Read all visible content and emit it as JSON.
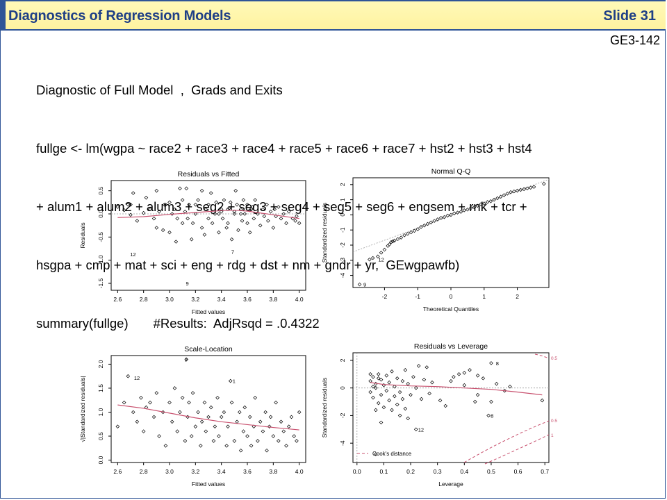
{
  "header": {
    "title": "Diagnostics of Regression Models",
    "slide_number": "Slide 31",
    "code": "GE3-142"
  },
  "body_lines": [
    "Diagnostic of Full Model  ,  Grads and Exits",
    "fullge <- lm(wgpa ~ race2 + race3 + race4 + race5 + race6 + race7 + hst2 + hst3 + hst4",
    "+ alum1 + alum2 + alum3 + seg2 + seg3 + seg4 + seg5 + seg6 + engsem + rnk + tcr +",
    "hsgpa + cmp + mat + sci + eng + rdg + dst + nm + gndr + yr,  GEwgpawfb)",
    "summary(fullge)       #Results:  AdjRsqd = .0.4322"
  ],
  "colors": {
    "title_text": "#1f3f86",
    "frame": "#2f5597",
    "title_bg": "#fff5a8",
    "smooth_line": "#c8506e"
  },
  "chart_data": [
    {
      "type": "scatter",
      "title": "Residuals vs Fitted",
      "xlabel": "Fitted values",
      "ylabel": "Residuals",
      "xlim": [
        2.55,
        4.05
      ],
      "ylim": [
        -1.65,
        0.72
      ],
      "xticks": [
        "2.6",
        "2.8",
        "3.0",
        "3.2",
        "3.4",
        "3.6",
        "3.8",
        "4.0"
      ],
      "yticks": [
        "-1.5",
        "-1.0",
        "-0.5",
        "0.0",
        "0.5"
      ],
      "reference_line": 0,
      "smooth": [
        [
          2.6,
          -0.08
        ],
        [
          2.8,
          -0.06
        ],
        [
          3.0,
          -0.01
        ],
        [
          3.2,
          0.03
        ],
        [
          3.4,
          0.07
        ],
        [
          3.5,
          0.08
        ],
        [
          3.6,
          0.06
        ],
        [
          3.8,
          -0.02
        ],
        [
          4.0,
          -0.1
        ]
      ],
      "labels": [
        {
          "text": "12",
          "x": 2.68,
          "y": -0.87
        },
        {
          "text": "9",
          "x": 3.11,
          "y": -1.5
        },
        {
          "text": "7",
          "x": 3.46,
          "y": -0.82
        }
      ],
      "points": [
        [
          2.6,
          0.15
        ],
        [
          2.65,
          0.08
        ],
        [
          2.68,
          0.2
        ],
        [
          2.7,
          -0.02
        ],
        [
          2.7,
          0.2
        ],
        [
          2.72,
          0.45
        ],
        [
          2.75,
          -0.15
        ],
        [
          2.8,
          0.02
        ],
        [
          2.82,
          0.35
        ],
        [
          2.85,
          0.1
        ],
        [
          2.88,
          -0.1
        ],
        [
          2.9,
          -0.3
        ],
        [
          2.9,
          0.5
        ],
        [
          2.92,
          0.05
        ],
        [
          2.95,
          -0.35
        ],
        [
          2.96,
          0.2
        ],
        [
          2.97,
          0.2
        ],
        [
          3.0,
          -0.4
        ],
        [
          3.0,
          0.25
        ],
        [
          3.02,
          0.0
        ],
        [
          3.04,
          0.1
        ],
        [
          3.05,
          -0.6
        ],
        [
          3.06,
          -0.1
        ],
        [
          3.08,
          0.55
        ],
        [
          3.1,
          -0.2
        ],
        [
          3.1,
          0.3
        ],
        [
          3.12,
          0.05
        ],
        [
          3.13,
          0.55
        ],
        [
          3.14,
          -0.1
        ],
        [
          3.15,
          0.2
        ],
        [
          3.17,
          -0.55
        ],
        [
          3.18,
          -0.2
        ],
        [
          3.2,
          0.2
        ],
        [
          3.2,
          0.0
        ],
        [
          3.22,
          0.3
        ],
        [
          3.25,
          -0.3
        ],
        [
          3.25,
          0.5
        ],
        [
          3.27,
          -0.45
        ],
        [
          3.28,
          0.1
        ],
        [
          3.3,
          0.2
        ],
        [
          3.3,
          -0.1
        ],
        [
          3.32,
          0.45
        ],
        [
          3.33,
          -0.2
        ],
        [
          3.35,
          0.0
        ],
        [
          3.36,
          0.25
        ],
        [
          3.38,
          -0.4
        ],
        [
          3.4,
          0.1
        ],
        [
          3.41,
          -0.1
        ],
        [
          3.42,
          0.3
        ],
        [
          3.44,
          -0.3
        ],
        [
          3.45,
          0.1
        ],
        [
          3.45,
          -0.2
        ],
        [
          3.47,
          0.25
        ],
        [
          3.48,
          -0.55
        ],
        [
          3.5,
          0.0
        ],
        [
          3.51,
          0.5
        ],
        [
          3.52,
          0.2
        ],
        [
          3.53,
          -0.35
        ],
        [
          3.55,
          0.1
        ],
        [
          3.56,
          -0.15
        ],
        [
          3.57,
          0.3
        ],
        [
          3.58,
          0.0
        ],
        [
          3.6,
          -0.2
        ],
        [
          3.6,
          0.2
        ],
        [
          3.62,
          -0.4
        ],
        [
          3.63,
          0.1
        ],
        [
          3.64,
          0.15
        ],
        [
          3.65,
          -0.1
        ],
        [
          3.66,
          0.3
        ],
        [
          3.68,
          0.0
        ],
        [
          3.7,
          -0.25
        ],
        [
          3.72,
          0.1
        ],
        [
          3.73,
          -0.05
        ],
        [
          3.75,
          0.2
        ],
        [
          3.76,
          -0.15
        ],
        [
          3.78,
          0.05
        ],
        [
          3.8,
          -0.3
        ],
        [
          3.81,
          0.1
        ],
        [
          3.82,
          -0.05
        ],
        [
          3.84,
          0.15
        ],
        [
          3.86,
          -0.1
        ],
        [
          3.88,
          0.0
        ],
        [
          3.9,
          -0.2
        ],
        [
          3.92,
          0.05
        ],
        [
          3.95,
          -0.1
        ],
        [
          3.97,
          -0.15
        ],
        [
          4.0,
          -0.2
        ],
        [
          3.98,
          -0.05
        ],
        [
          3.5,
          0.05
        ],
        [
          3.55,
          0.0
        ],
        [
          3.62,
          0.08
        ],
        [
          3.4,
          0.05
        ],
        [
          3.38,
          0.0
        ],
        [
          3.46,
          0.12
        ]
      ]
    },
    {
      "type": "scatter",
      "title": "Normal Q-Q",
      "xlabel": "Theoretical Quantiles",
      "ylabel": "Standardized residuals",
      "xlim": [
        -2.95,
        2.95
      ],
      "ylim": [
        -4.8,
        2.45
      ],
      "xticks": [
        "-2",
        "-1",
        "0",
        "1",
        "2"
      ],
      "yticks": [
        "-4",
        "-3",
        "-2",
        "-1",
        "0",
        "1",
        "2"
      ],
      "reference_line": "qq",
      "labels": [
        {
          "text": "12",
          "x": -2.25,
          "y": -2.95
        },
        {
          "text": "9",
          "x": -2.7,
          "y": -4.6
        }
      ],
      "points": [
        [
          -2.75,
          -4.6
        ],
        [
          -2.45,
          -2.95
        ],
        [
          -2.35,
          -2.85
        ],
        [
          -2.2,
          -2.75
        ],
        [
          -2.1,
          -2.5
        ],
        [
          -2.0,
          -2.3
        ],
        [
          -1.9,
          -2.05
        ],
        [
          -1.85,
          -1.95
        ],
        [
          -1.8,
          -1.8
        ],
        [
          -1.75,
          -1.75
        ],
        [
          -1.7,
          -1.7
        ],
        [
          -1.6,
          -1.6
        ],
        [
          -1.5,
          -1.5
        ],
        [
          -1.4,
          -1.35
        ],
        [
          -1.3,
          -1.25
        ],
        [
          -1.2,
          -1.15
        ],
        [
          -1.1,
          -1.05
        ],
        [
          -1.0,
          -0.95
        ],
        [
          -0.9,
          -0.8
        ],
        [
          -0.8,
          -0.7
        ],
        [
          -0.7,
          -0.6
        ],
        [
          -0.6,
          -0.5
        ],
        [
          -0.5,
          -0.4
        ],
        [
          -0.4,
          -0.3
        ],
        [
          -0.3,
          -0.2
        ],
        [
          -0.2,
          -0.15
        ],
        [
          -0.1,
          -0.05
        ],
        [
          0.0,
          0.0
        ],
        [
          0.1,
          0.1
        ],
        [
          0.2,
          0.15
        ],
        [
          0.3,
          0.2
        ],
        [
          0.4,
          0.3
        ],
        [
          0.5,
          0.35
        ],
        [
          0.6,
          0.45
        ],
        [
          0.7,
          0.5
        ],
        [
          0.8,
          0.6
        ],
        [
          0.9,
          0.7
        ],
        [
          1.0,
          0.75
        ],
        [
          1.1,
          0.85
        ],
        [
          1.2,
          0.9
        ],
        [
          1.3,
          1.0
        ],
        [
          1.4,
          1.1
        ],
        [
          1.5,
          1.2
        ],
        [
          1.6,
          1.3
        ],
        [
          1.7,
          1.4
        ],
        [
          1.8,
          1.5
        ],
        [
          1.9,
          1.55
        ],
        [
          2.0,
          1.6
        ],
        [
          2.1,
          1.65
        ],
        [
          2.2,
          1.7
        ],
        [
          2.3,
          1.75
        ],
        [
          2.4,
          1.8
        ],
        [
          2.5,
          1.85
        ],
        [
          2.8,
          2.05
        ]
      ]
    },
    {
      "type": "scatter",
      "title": "Scale-Location",
      "xlabel": "Fitted values",
      "ylabel": "√|Standardized residuals|",
      "xlim": [
        2.55,
        4.05
      ],
      "ylim": [
        -0.05,
        2.18
      ],
      "xticks": [
        "2.6",
        "2.8",
        "3.0",
        "3.2",
        "3.4",
        "3.6",
        "3.8",
        "4.0"
      ],
      "yticks": [
        "0.0",
        "0.5",
        "1.0",
        "1.5",
        "2.0"
      ],
      "smooth": [
        [
          2.6,
          1.15
        ],
        [
          2.8,
          1.08
        ],
        [
          3.0,
          0.98
        ],
        [
          3.2,
          0.88
        ],
        [
          3.4,
          0.8
        ],
        [
          3.6,
          0.74
        ],
        [
          3.8,
          0.68
        ],
        [
          4.0,
          0.63
        ]
      ],
      "labels": [
        {
          "text": "12",
          "x": 2.71,
          "y": 1.72
        },
        {
          "text": "9",
          "x": 3.1,
          "y": 2.1
        },
        {
          "text": "1",
          "x": 3.47,
          "y": 1.65
        }
      ],
      "points": [
        [
          2.6,
          0.7
        ],
        [
          2.65,
          1.2
        ],
        [
          2.68,
          1.75
        ],
        [
          2.72,
          1.0
        ],
        [
          2.75,
          0.8
        ],
        [
          2.78,
          1.3
        ],
        [
          2.8,
          0.6
        ],
        [
          2.82,
          1.1
        ],
        [
          2.85,
          1.2
        ],
        [
          2.88,
          0.9
        ],
        [
          2.9,
          1.4
        ],
        [
          2.92,
          0.5
        ],
        [
          2.95,
          1.0
        ],
        [
          2.97,
          0.3
        ],
        [
          3.0,
          1.2
        ],
        [
          3.02,
          0.8
        ],
        [
          3.04,
          1.5
        ],
        [
          3.06,
          0.6
        ],
        [
          3.08,
          1.0
        ],
        [
          3.1,
          1.3
        ],
        [
          3.12,
          0.4
        ],
        [
          3.13,
          2.1
        ],
        [
          3.14,
          0.9
        ],
        [
          3.15,
          1.2
        ],
        [
          3.17,
          0.5
        ],
        [
          3.18,
          1.4
        ],
        [
          3.2,
          0.7
        ],
        [
          3.22,
          1.0
        ],
        [
          3.24,
          0.3
        ],
        [
          3.25,
          0.8
        ],
        [
          3.27,
          1.2
        ],
        [
          3.28,
          0.6
        ],
        [
          3.3,
          0.9
        ],
        [
          3.32,
          1.1
        ],
        [
          3.34,
          0.4
        ],
        [
          3.35,
          0.7
        ],
        [
          3.37,
          1.3
        ],
        [
          3.38,
          0.5
        ],
        [
          3.4,
          0.9
        ],
        [
          3.42,
          1.0
        ],
        [
          3.44,
          0.3
        ],
        [
          3.45,
          0.7
        ],
        [
          3.47,
          1.65
        ],
        [
          3.48,
          1.2
        ],
        [
          3.5,
          0.4
        ],
        [
          3.52,
          0.8
        ],
        [
          3.54,
          1.0
        ],
        [
          3.55,
          0.2
        ],
        [
          3.57,
          0.6
        ],
        [
          3.58,
          1.1
        ],
        [
          3.6,
          0.5
        ],
        [
          3.62,
          0.9
        ],
        [
          3.63,
          0.3
        ],
        [
          3.65,
          0.7
        ],
        [
          3.66,
          1.3
        ],
        [
          3.68,
          0.4
        ],
        [
          3.7,
          0.8
        ],
        [
          3.72,
          0.6
        ],
        [
          3.74,
          1.0
        ],
        [
          3.75,
          0.2
        ],
        [
          3.77,
          0.7
        ],
        [
          3.78,
          0.9
        ],
        [
          3.8,
          0.5
        ],
        [
          3.82,
          1.2
        ],
        [
          3.84,
          0.4
        ],
        [
          3.86,
          0.8
        ],
        [
          3.88,
          0.6
        ],
        [
          3.9,
          0.3
        ],
        [
          3.92,
          0.7
        ],
        [
          3.94,
          0.9
        ],
        [
          3.96,
          0.5
        ],
        [
          3.98,
          0.4
        ],
        [
          4.0,
          1.0
        ]
      ]
    },
    {
      "type": "scatter",
      "title": "Residuals vs Leverage",
      "xlabel": "Leverage",
      "ylabel": "Standardized residuals",
      "xlim": [
        -0.015,
        0.715
      ],
      "ylim": [
        -5.4,
        2.55
      ],
      "xticks": [
        "0.0",
        "0.1",
        "0.2",
        "0.3",
        "0.4",
        "0.5",
        "0.6",
        "0.7"
      ],
      "yticks": [
        "-4",
        "-2",
        "0",
        "2"
      ],
      "reference_line": 0,
      "legend": "Cook's distance",
      "cook_levels": [
        "0.5",
        "0.5",
        "1"
      ],
      "smooth": [
        [
          0.05,
          0.4
        ],
        [
          0.1,
          0.25
        ],
        [
          0.2,
          0.15
        ],
        [
          0.3,
          0.1
        ],
        [
          0.4,
          0.0
        ],
        [
          0.5,
          -0.1
        ],
        [
          0.6,
          -0.3
        ],
        [
          0.69,
          -0.5
        ]
      ],
      "labels": [
        {
          "text": "12",
          "x": 0.22,
          "y": -3.0
        },
        {
          "text": "8",
          "x": 0.51,
          "y": 1.8
        },
        {
          "text": "8",
          "x": 0.49,
          "y": -2.0
        }
      ],
      "points": [
        [
          0.05,
          0.5
        ],
        [
          0.06,
          0.8
        ],
        [
          0.07,
          0.3
        ],
        [
          0.08,
          1.0
        ],
        [
          0.09,
          0.6
        ],
        [
          0.1,
          0.2
        ],
        [
          0.11,
          0.9
        ],
        [
          0.12,
          0.4
        ],
        [
          0.13,
          1.2
        ],
        [
          0.14,
          0.1
        ],
        [
          0.15,
          0.7
        ],
        [
          0.16,
          -0.3
        ],
        [
          0.17,
          0.5
        ],
        [
          0.18,
          1.3
        ],
        [
          0.19,
          0.3
        ],
        [
          0.2,
          -0.5
        ],
        [
          0.21,
          0.8
        ],
        [
          0.22,
          0.0
        ],
        [
          0.23,
          1.6
        ],
        [
          0.24,
          -0.8
        ],
        [
          0.25,
          0.6
        ],
        [
          0.26,
          1.5
        ],
        [
          0.27,
          -0.4
        ],
        [
          0.28,
          0.4
        ],
        [
          0.05,
          -0.3
        ],
        [
          0.06,
          -0.7
        ],
        [
          0.07,
          0.0
        ],
        [
          0.08,
          -1.1
        ],
        [
          0.09,
          -0.5
        ],
        [
          0.1,
          -1.4
        ],
        [
          0.11,
          -0.2
        ],
        [
          0.12,
          -0.9
        ],
        [
          0.13,
          -1.6
        ],
        [
          0.14,
          -0.6
        ],
        [
          0.15,
          -1.2
        ],
        [
          0.16,
          -2.0
        ],
        [
          0.17,
          -0.8
        ],
        [
          0.18,
          -1.5
        ],
        [
          0.19,
          -2.2
        ],
        [
          0.06,
          0.1
        ],
        [
          0.07,
          -1.6
        ],
        [
          0.08,
          0.7
        ],
        [
          0.09,
          -2.5
        ],
        [
          0.05,
          1.0
        ],
        [
          0.35,
          0.5
        ],
        [
          0.38,
          1.0
        ],
        [
          0.4,
          0.2
        ],
        [
          0.42,
          1.3
        ],
        [
          0.45,
          -0.5
        ],
        [
          0.47,
          0.7
        ],
        [
          0.5,
          -1.0
        ],
        [
          0.52,
          0.3
        ],
        [
          0.55,
          -0.2
        ],
        [
          0.57,
          0.1
        ],
        [
          0.31,
          -0.9
        ],
        [
          0.33,
          -1.3
        ],
        [
          0.36,
          0.8
        ],
        [
          0.44,
          -1.0
        ],
        [
          0.22,
          -3.0
        ],
        [
          0.07,
          -4.8
        ],
        [
          0.69,
          -0.9
        ],
        [
          0.5,
          1.8
        ],
        [
          0.49,
          -2.0
        ],
        [
          0.4,
          1.1
        ],
        [
          0.45,
          0.9
        ]
      ]
    }
  ]
}
